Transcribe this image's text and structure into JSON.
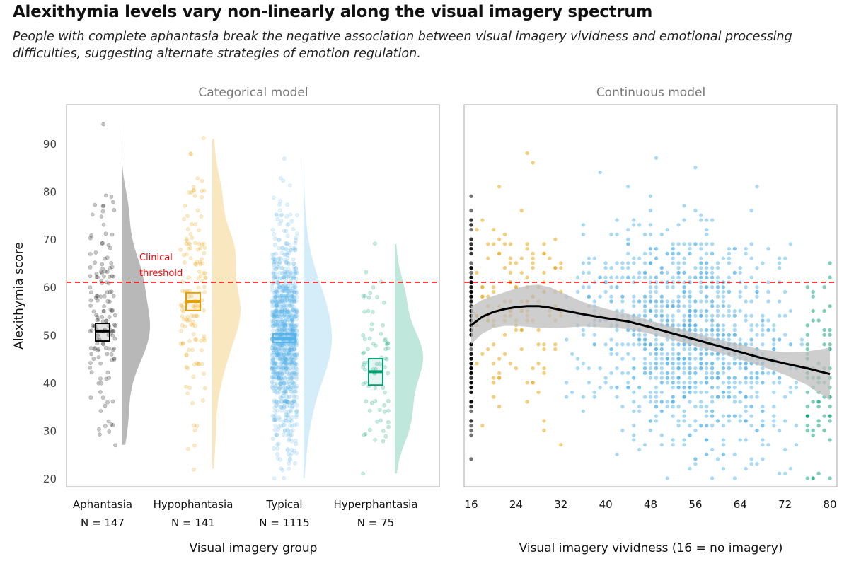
{
  "title": "Alexithymia levels vary non-linearly along the visual imagery spectrum",
  "subtitle": "People with complete aphantasia break the negative association between visual imagery vividness and emotional processing difficulties, suggesting alternate strategies of emotion regulation.",
  "colors": {
    "Aphantasia": "#000000",
    "Hypophantasia": "#E69F00",
    "Typical": "#56B4E9",
    "Hyperphantasia": "#009E73",
    "threshold": "#FF0000",
    "smooth": "#000000",
    "ribbon": "#BEBEBE"
  },
  "chart_data": [
    {
      "type": "raincloud",
      "panel_title": "Categorical model",
      "xlabel": "Visual imagery group",
      "ylabel": "Alexithymia score",
      "ylim": [
        19,
        97
      ],
      "yticks": [
        20,
        30,
        40,
        50,
        60,
        70,
        80,
        90
      ],
      "threshold": {
        "value": 61,
        "label_line1": "Clinical",
        "label_line2": "threshold"
      },
      "groups": [
        {
          "name": "Aphantasia",
          "n_label": "N = 147",
          "n": 147,
          "mean": 50.8,
          "ci": [
            48.7,
            52.4
          ],
          "min": 27,
          "max": 94,
          "sd": 13
        },
        {
          "name": "Hypophantasia",
          "n_label": "N = 141",
          "n": 141,
          "mean": 57.0,
          "ci": [
            55.1,
            58.8
          ],
          "min": 22,
          "max": 91,
          "sd": 12
        },
        {
          "name": "Typical",
          "n_label": "N = 1115",
          "n": 1115,
          "mean": 49.3,
          "ci": [
            48.4,
            50.2
          ],
          "min": 20,
          "max": 87,
          "sd": 11
        },
        {
          "name": "Hyperphantasia",
          "n_label": "N = 75",
          "n": 75,
          "mean": 42.3,
          "ci": [
            39.5,
            45.0
          ],
          "min": 21,
          "max": 69,
          "sd": 11
        }
      ]
    },
    {
      "type": "scatter",
      "panel_title": "Continuous model",
      "xlabel": "Visual imagery vividness (16 = no imagery)",
      "xlim": [
        15,
        81
      ],
      "xticks": [
        16,
        24,
        32,
        40,
        48,
        56,
        64,
        72,
        80
      ],
      "ylim": [
        19,
        97
      ],
      "threshold": 61,
      "smooth": {
        "x": [
          16,
          18,
          20,
          22,
          24,
          26,
          28,
          30,
          32,
          36,
          40,
          44,
          48,
          52,
          56,
          60,
          64,
          68,
          72,
          76,
          80
        ],
        "y": [
          52.0,
          53.8,
          54.8,
          55.4,
          55.8,
          56.0,
          56.0,
          55.7,
          55.2,
          54.3,
          53.5,
          52.8,
          51.6,
          50.3,
          49.0,
          47.7,
          46.4,
          45.1,
          44.0,
          43.0,
          41.8
        ],
        "se": [
          2.0,
          1.8,
          1.7,
          1.8,
          2.0,
          2.2,
          2.3,
          2.2,
          1.9,
          1.3,
          1.0,
          0.8,
          0.7,
          0.7,
          0.7,
          0.7,
          0.8,
          0.9,
          1.2,
          1.8,
          2.8
        ]
      },
      "group_ranges": {
        "Aphantasia": [
          16,
          16
        ],
        "Hypophantasia": [
          17,
          32
        ],
        "Typical": [
          33,
          75
        ],
        "Hyperphantasia": [
          76,
          80
        ]
      }
    }
  ]
}
